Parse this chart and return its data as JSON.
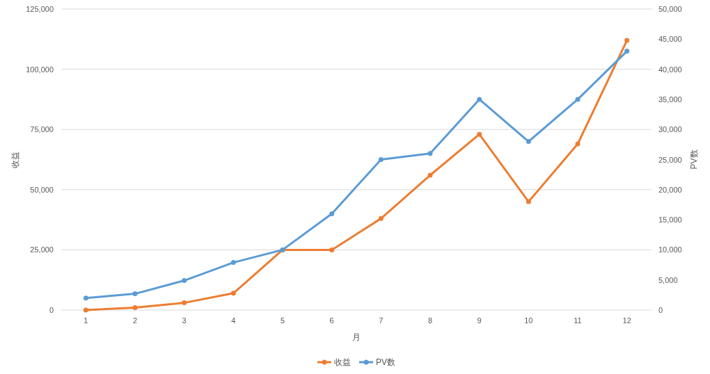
{
  "chart_data": {
    "type": "line",
    "xlabel": "月",
    "ylabel": "收益",
    "y2label": "PV数",
    "categories": [
      "1",
      "2",
      "3",
      "4",
      "5",
      "6",
      "7",
      "8",
      "9",
      "10",
      "11",
      "12"
    ],
    "series": [
      {
        "name": "收益",
        "color": "#ed7d31",
        "values": [
          0,
          1000,
          3000,
          7000,
          25000,
          25000,
          38000,
          56000,
          73000,
          45000,
          69000,
          112000
        ]
      },
      {
        "name": "PV数",
        "color": "#5b9bd5",
        "axis": "y2",
        "values": [
          2000,
          2700,
          4900,
          7900,
          10000,
          16000,
          25000,
          26000,
          35000,
          28000,
          35000,
          43000
        ]
      }
    ],
    "ylim": [
      0,
      125000
    ],
    "yticks": [
      0,
      {
        "value": 25000,
        "label": "25,000"
      },
      {
        "value": 50000,
        "label": "50,000"
      },
      {
        "value": 75000,
        "label": "75,000"
      },
      {
        "value": 100000,
        "label": "100,000"
      },
      {
        "value": 125000,
        "label": "125,000"
      }
    ],
    "y2lim": [
      0,
      50000
    ],
    "y2ticks": [
      0,
      {
        "value": 5000,
        "label": "5,000"
      },
      {
        "value": 10000,
        "label": "10,000"
      },
      {
        "value": 15000,
        "label": "15,000"
      },
      {
        "value": 20000,
        "label": "20,000"
      },
      {
        "value": 25000,
        "label": "25,000"
      },
      {
        "value": 30000,
        "label": "30,000"
      },
      {
        "value": 35000,
        "label": "35,000"
      },
      {
        "value": 40000,
        "label": "40,000"
      },
      {
        "value": 45000,
        "label": "45,000"
      },
      {
        "value": 50000,
        "label": "50,000"
      }
    ],
    "grid": "y",
    "legend": "bottom",
    "marker": "circle",
    "line_style": "solid"
  }
}
